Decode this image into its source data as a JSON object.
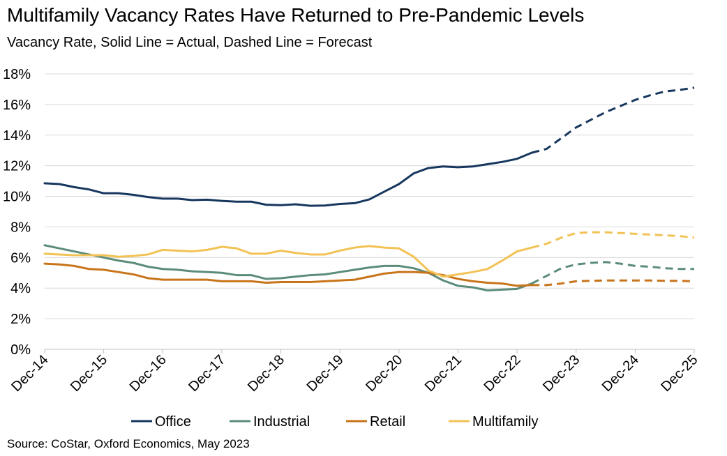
{
  "title": "Multifamily Vacancy Rates Have Returned to Pre-Pandemic Levels",
  "subtitle": "Vacancy Rate, Solid Line = Actual, Dashed Line = Forecast",
  "source": "Source: CoStar, Oxford Economics, May 2023",
  "chart_data": {
    "type": "line",
    "title": "Multifamily Vacancy Rates Have Returned to Pre-Pandemic Levels",
    "subtitle": "Vacancy Rate, Solid Line = Actual, Dashed Line = Forecast",
    "x_tick_labels": [
      "Dec-14",
      "Dec-15",
      "Dec-16",
      "Dec-17",
      "Dec-18",
      "Dec-19",
      "Dec-20",
      "Dec-21",
      "Dec-22",
      "Dec-23",
      "Dec-24",
      "Dec-25"
    ],
    "y_tick_labels": [
      "0%",
      "2%",
      "4%",
      "6%",
      "8%",
      "10%",
      "12%",
      "14%",
      "16%",
      "18%"
    ],
    "ylim": [
      0,
      18
    ],
    "y_unit": "%",
    "grid": "horizontal",
    "legend_position": "bottom",
    "forecast_start": "Mar-23",
    "x": [
      "Dec-14",
      "Mar-15",
      "Jun-15",
      "Sep-15",
      "Dec-15",
      "Mar-16",
      "Jun-16",
      "Sep-16",
      "Dec-16",
      "Mar-17",
      "Jun-17",
      "Sep-17",
      "Dec-17",
      "Mar-18",
      "Jun-18",
      "Sep-18",
      "Dec-18",
      "Mar-19",
      "Jun-19",
      "Sep-19",
      "Dec-19",
      "Mar-20",
      "Jun-20",
      "Sep-20",
      "Dec-20",
      "Mar-21",
      "Jun-21",
      "Sep-21",
      "Dec-21",
      "Mar-22",
      "Jun-22",
      "Sep-22",
      "Dec-22",
      "Mar-23",
      "Jun-23",
      "Sep-23",
      "Dec-23",
      "Mar-24",
      "Jun-24",
      "Sep-24",
      "Dec-24",
      "Mar-25",
      "Jun-25",
      "Sep-25",
      "Dec-25"
    ],
    "series": [
      {
        "name": "Office",
        "color": "#17375e",
        "values": [
          10.85,
          10.8,
          10.6,
          10.45,
          10.2,
          10.2,
          10.1,
          9.95,
          9.85,
          9.85,
          9.75,
          9.78,
          9.7,
          9.65,
          9.65,
          9.45,
          9.42,
          9.48,
          9.38,
          9.4,
          9.5,
          9.55,
          9.8,
          10.3,
          10.8,
          11.5,
          11.85,
          11.95,
          11.9,
          11.95,
          12.1,
          12.25,
          12.45,
          12.85,
          13.1,
          13.8,
          14.5,
          15.0,
          15.5,
          15.9,
          16.3,
          16.6,
          16.85,
          16.95,
          17.1
        ]
      },
      {
        "name": "Industrial",
        "color": "#5b8c7a",
        "values": [
          6.8,
          6.6,
          6.4,
          6.2,
          6.0,
          5.8,
          5.65,
          5.4,
          5.25,
          5.2,
          5.1,
          5.05,
          5.0,
          4.85,
          4.85,
          4.6,
          4.65,
          4.75,
          4.85,
          4.9,
          5.05,
          5.2,
          5.35,
          5.45,
          5.45,
          5.3,
          5.0,
          4.5,
          4.15,
          4.05,
          3.85,
          3.9,
          3.95,
          4.3,
          4.8,
          5.3,
          5.55,
          5.65,
          5.7,
          5.6,
          5.45,
          5.4,
          5.3,
          5.25,
          5.25
        ]
      },
      {
        "name": "Retail",
        "color": "#c8741a",
        "values": [
          5.6,
          5.55,
          5.45,
          5.25,
          5.2,
          5.05,
          4.9,
          4.65,
          4.55,
          4.55,
          4.55,
          4.55,
          4.45,
          4.45,
          4.45,
          4.35,
          4.4,
          4.4,
          4.4,
          4.45,
          4.5,
          4.55,
          4.75,
          4.95,
          5.05,
          5.05,
          5.0,
          4.85,
          4.6,
          4.45,
          4.35,
          4.3,
          4.15,
          4.2,
          4.2,
          4.3,
          4.45,
          4.48,
          4.5,
          4.5,
          4.5,
          4.5,
          4.48,
          4.47,
          4.45
        ]
      },
      {
        "name": "Multifamily",
        "color": "#f3c255",
        "values": [
          6.25,
          6.2,
          6.15,
          6.15,
          6.15,
          6.05,
          6.1,
          6.2,
          6.5,
          6.45,
          6.4,
          6.5,
          6.7,
          6.6,
          6.25,
          6.25,
          6.45,
          6.3,
          6.2,
          6.2,
          6.45,
          6.65,
          6.75,
          6.65,
          6.6,
          6.05,
          5.15,
          4.75,
          4.9,
          5.05,
          5.25,
          5.8,
          6.4,
          6.65,
          6.9,
          7.3,
          7.6,
          7.65,
          7.65,
          7.6,
          7.55,
          7.5,
          7.45,
          7.4,
          7.3
        ]
      }
    ]
  }
}
